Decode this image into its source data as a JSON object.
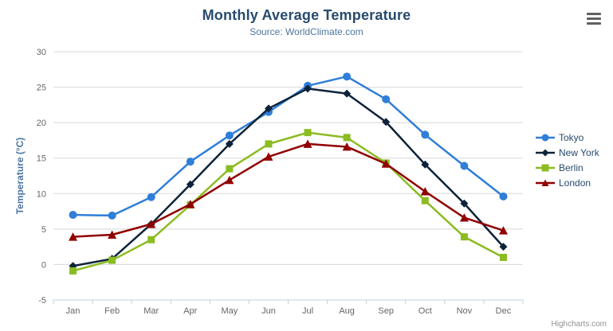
{
  "chart": {
    "title": "Monthly Average Temperature",
    "subtitle": "Source: WorldClimate.com",
    "credits": "Highcharts.com"
  },
  "chart_data": {
    "type": "line",
    "title": "Monthly Average Temperature",
    "subtitle": "Source: WorldClimate.com",
    "categories": [
      "Jan",
      "Feb",
      "Mar",
      "Apr",
      "May",
      "Jun",
      "Jul",
      "Aug",
      "Sep",
      "Oct",
      "Nov",
      "Dec"
    ],
    "xlabel": "",
    "ylabel": "Temperature (°C)",
    "ylim": [
      -5,
      30
    ],
    "ytick_interval": 5,
    "grid": true,
    "legend_position": "right",
    "series": [
      {
        "name": "Tokyo",
        "color": "#2f7ed8",
        "marker": "circle",
        "values": [
          7.0,
          6.9,
          9.5,
          14.5,
          18.2,
          21.5,
          25.2,
          26.5,
          23.3,
          18.3,
          13.9,
          9.6
        ]
      },
      {
        "name": "New York",
        "color": "#0d233a",
        "marker": "diamond",
        "values": [
          -0.2,
          0.8,
          5.7,
          11.3,
          17.0,
          22.0,
          24.8,
          24.1,
          20.1,
          14.1,
          8.6,
          2.5
        ]
      },
      {
        "name": "Berlin",
        "color": "#8bbc21",
        "marker": "square",
        "values": [
          -0.9,
          0.6,
          3.5,
          8.4,
          13.5,
          17.0,
          18.6,
          17.9,
          14.3,
          9.0,
          3.9,
          1.0
        ]
      },
      {
        "name": "London",
        "color": "#910000",
        "marker": "triangle",
        "values": [
          3.9,
          4.2,
          5.7,
          8.5,
          11.9,
          15.2,
          17.0,
          16.6,
          14.2,
          10.3,
          6.6,
          4.8
        ]
      }
    ]
  },
  "colors": {
    "title": "#274b6d",
    "subtitle": "#4d759e",
    "yaxis_title": "#4a74a0",
    "axis_label": "#666666",
    "axis_line": "#c0d0e0",
    "grid_line": "#d8d8d8",
    "legend_text": "#274b6d",
    "credits": "#909090",
    "menu_icon": "#606060"
  }
}
